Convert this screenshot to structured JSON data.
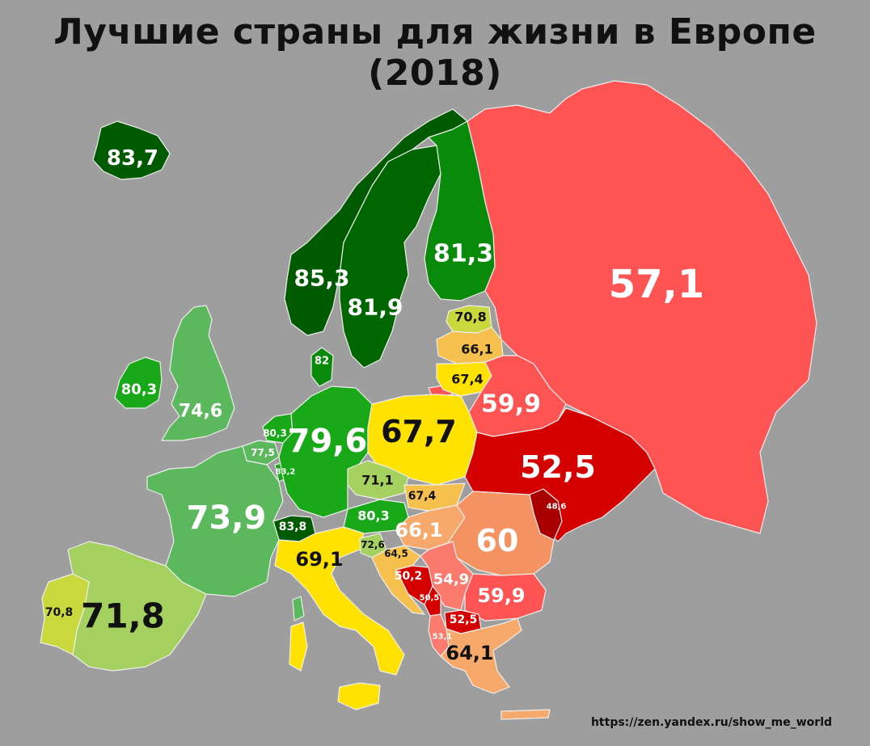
{
  "title": "Лучшие страны для жизни в Европе (2018)",
  "credit": "https://zen.yandex.ru/show_me_world",
  "palette": {
    "dark_green": "#005a00",
    "green": "#0a8a0a",
    "mid_green": "#18a818",
    "light_green": "#5cb85c",
    "pale_green": "#a5d160",
    "yellow_green": "#c9d83c",
    "yellow": "#ffe200",
    "light_orange": "#f5c04e",
    "peach": "#f6a96a",
    "orange": "#f59262",
    "salmon": "#fa7b6e",
    "light_red": "#ff5454",
    "red": "#d40000",
    "dark_red": "#a80000",
    "label_light": "#ffffff",
    "label_dark": "#111111"
  },
  "countries": [
    {
      "id": "iceland",
      "value": "83,7"
    },
    {
      "id": "norway",
      "value": "85,3"
    },
    {
      "id": "sweden",
      "value": "81,9"
    },
    {
      "id": "finland",
      "value": "81,3"
    },
    {
      "id": "russia",
      "value": "57,1"
    },
    {
      "id": "estonia",
      "value": "70,8"
    },
    {
      "id": "latvia",
      "value": "66,1"
    },
    {
      "id": "lithuania",
      "value": "67,4"
    },
    {
      "id": "belarus",
      "value": "59,9"
    },
    {
      "id": "ireland",
      "value": "80,3"
    },
    {
      "id": "uk",
      "value": "74,6"
    },
    {
      "id": "denmark",
      "value": "82"
    },
    {
      "id": "netherlands",
      "value": "80,3"
    },
    {
      "id": "belgium",
      "value": "77,5"
    },
    {
      "id": "luxembourg",
      "value": "83,2"
    },
    {
      "id": "germany",
      "value": "79,6"
    },
    {
      "id": "poland",
      "value": "67,7"
    },
    {
      "id": "ukraine",
      "value": "52,5"
    },
    {
      "id": "czechia",
      "value": "71,1"
    },
    {
      "id": "slovakia",
      "value": "67,4"
    },
    {
      "id": "austria",
      "value": "80,3"
    },
    {
      "id": "hungary",
      "value": "66,1"
    },
    {
      "id": "moldova",
      "value": "48,6"
    },
    {
      "id": "romania",
      "value": "60"
    },
    {
      "id": "france",
      "value": "73,9"
    },
    {
      "id": "switzerland",
      "value": "83,8"
    },
    {
      "id": "italy",
      "value": "69,1"
    },
    {
      "id": "slovenia",
      "value": "72,6"
    },
    {
      "id": "croatia",
      "value": "64,5"
    },
    {
      "id": "bosnia",
      "value": "50,2"
    },
    {
      "id": "serbia",
      "value": "54,9"
    },
    {
      "id": "montenegro",
      "value": "50,5"
    },
    {
      "id": "bulgaria",
      "value": "59,9"
    },
    {
      "id": "macedonia",
      "value": "52,5"
    },
    {
      "id": "albania",
      "value": "53,1"
    },
    {
      "id": "greece",
      "value": "64,1"
    },
    {
      "id": "portugal",
      "value": "70,8"
    },
    {
      "id": "spain",
      "value": "71,8"
    }
  ]
}
